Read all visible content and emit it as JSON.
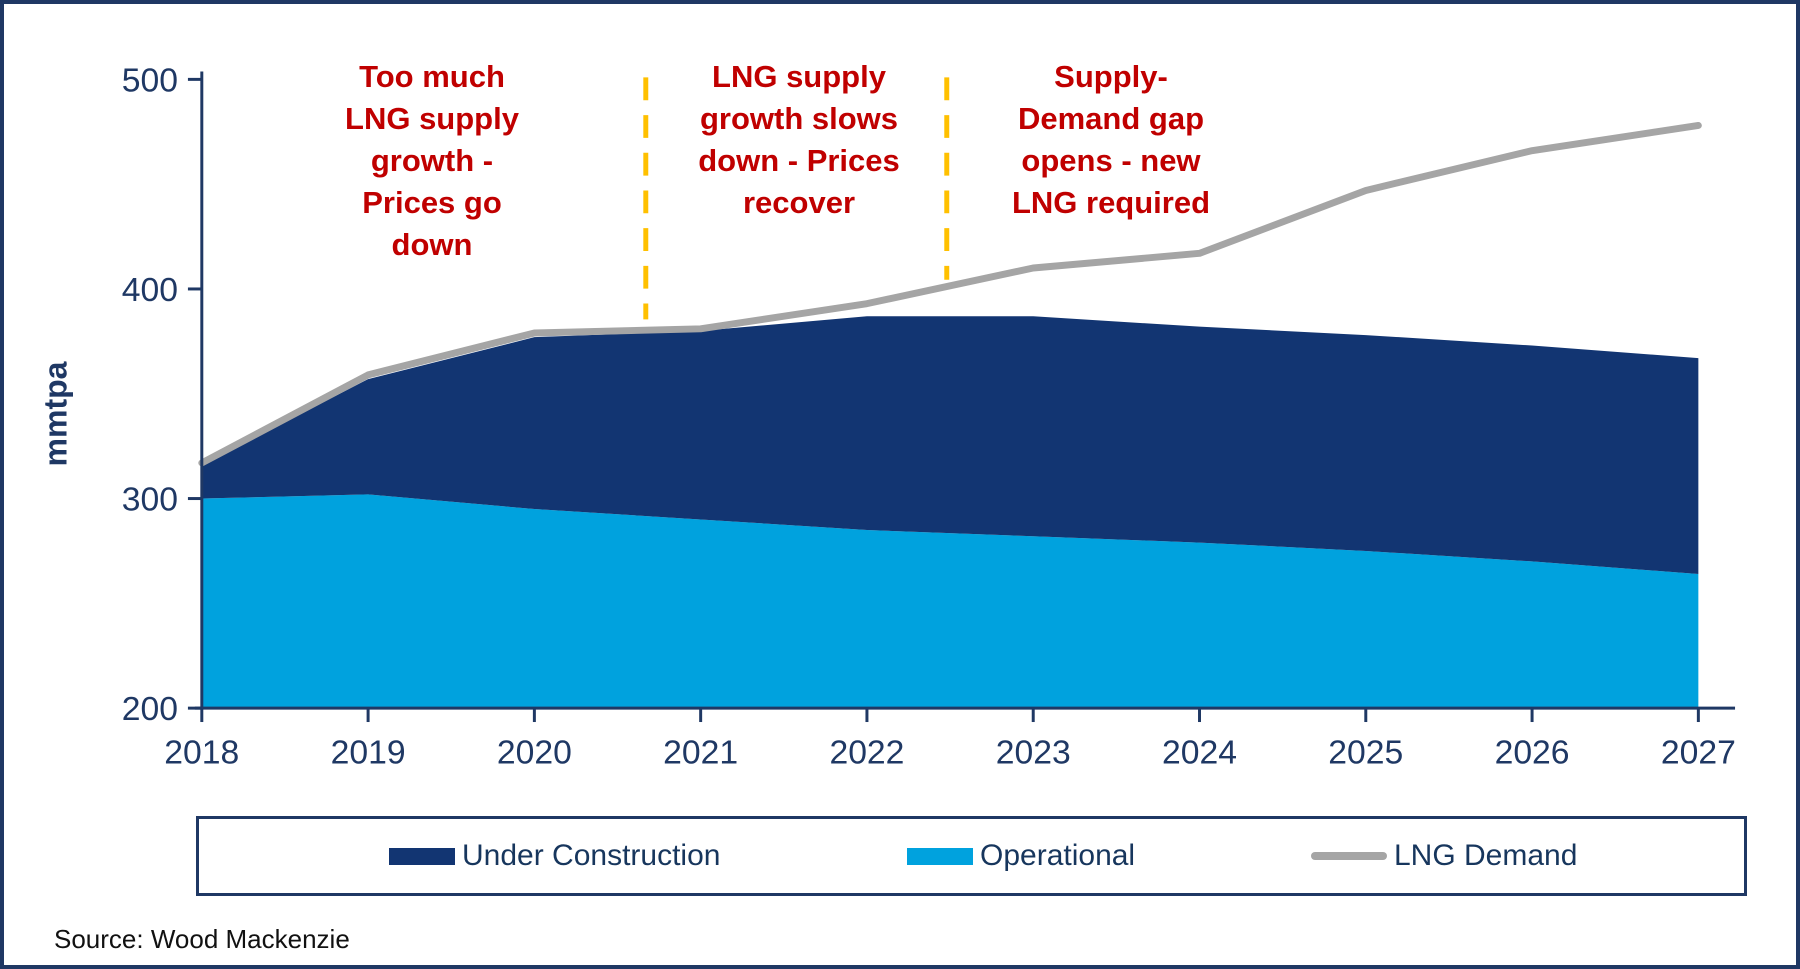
{
  "frame": {
    "border_color": "#1F3864",
    "background": "#FFFFFF"
  },
  "axes": {
    "y_label": "mmtpa",
    "y_ticks": [
      200,
      300,
      400,
      500
    ],
    "x_ticks": [
      2018,
      2019,
      2020,
      2021,
      2022,
      2023,
      2024,
      2025,
      2026,
      2027
    ],
    "axis_color": "#1F3864",
    "tick_label_color": "#1F3864"
  },
  "annotations": [
    {
      "id": "oversupply",
      "text": "Too much\nLNG supply\ngrowth -\nPrices go\ndown",
      "color": "#C00000"
    },
    {
      "id": "growth-slows",
      "text": "LNG supply\ngrowth slows\ndown - Prices\nrecover",
      "color": "#C00000"
    },
    {
      "id": "gap-opens",
      "text": "Supply-\nDemand gap\nopens - new\nLNG required",
      "color": "#C00000"
    }
  ],
  "divider_lines": {
    "color": "#FFC000",
    "style": "dashed",
    "x_years": [
      2020.67,
      2022.48
    ]
  },
  "legend": {
    "items": [
      {
        "label": "Under Construction",
        "color": "#123572",
        "swatch": "bar"
      },
      {
        "label": "Operational",
        "color": "#00A2DE",
        "swatch": "bar"
      },
      {
        "label": "LNG Demand",
        "color": "#A5A5A5",
        "swatch": "line"
      }
    ]
  },
  "source": "Source: Wood Mackenzie",
  "chart_data": {
    "type": "area",
    "title": "",
    "xlabel": "",
    "ylabel": "mmtpa",
    "x": [
      2018,
      2019,
      2020,
      2021,
      2022,
      2023,
      2024,
      2025,
      2026,
      2027
    ],
    "ylim": [
      200,
      500
    ],
    "yticks": [
      200,
      300,
      400,
      500
    ],
    "grid": false,
    "legend_position": "bottom",
    "stacked_series": [
      {
        "name": "Operational",
        "color": "#00A2DE",
        "values": [
          300,
          302,
          295,
          290,
          285,
          282,
          279,
          275,
          270,
          264
        ]
      },
      {
        "name": "Under Construction",
        "color": "#123572",
        "values": [
          16,
          55,
          82,
          90,
          102,
          105,
          103,
          103,
          103,
          103
        ]
      }
    ],
    "supply_total": [
      316,
      357,
      377,
      380,
      387,
      387,
      382,
      378,
      373,
      367
    ],
    "line_series": [
      {
        "name": "LNG Demand",
        "color": "#A5A5A5",
        "values": [
          317,
          359,
          379,
          381,
          393,
          410,
          417,
          447,
          466,
          478
        ]
      }
    ]
  }
}
